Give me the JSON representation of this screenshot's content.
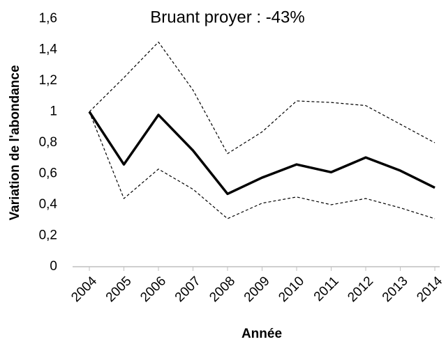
{
  "chart_data": {
    "type": "line",
    "title": "Bruant proyer : -43%",
    "x_label": "Année",
    "y_label": "Variation de l'abondance",
    "categories": [
      "2004",
      "2005",
      "2006",
      "2007",
      "2008",
      "2009",
      "2010",
      "2011",
      "2012",
      "2013",
      "2014"
    ],
    "series": [
      {
        "color": "#000000",
        "dashed": false,
        "values": [
          1.0,
          0.66,
          0.98,
          0.75,
          0.47,
          0.575,
          0.66,
          0.61,
          0.705,
          0.62,
          0.51
        ]
      },
      {
        "color": "#000000",
        "dashed": true,
        "values": [
          1.0,
          1.22,
          1.45,
          1.14,
          0.73,
          0.87,
          1.07,
          1.06,
          1.04,
          0.92,
          0.8
        ]
      },
      {
        "color": "#000000",
        "dashed": true,
        "values": [
          1.0,
          0.44,
          0.63,
          0.5,
          0.31,
          0.41,
          0.45,
          0.4,
          0.44,
          0.38,
          0.31
        ]
      }
    ],
    "ylim": [
      0,
      1.6
    ],
    "yticks": [
      0,
      {
        "value": 0.2,
        "label": "0,2"
      },
      {
        "value": 0.4,
        "label": "0,4"
      },
      {
        "value": 0.6,
        "label": "0,6"
      },
      {
        "value": 0.8,
        "label": "0,8"
      },
      1,
      {
        "value": 1.2,
        "label": "1,2"
      },
      {
        "value": 1.4,
        "label": "1,4"
      },
      {
        "value": 1.6,
        "label": "1,6"
      }
    ],
    "grid": false
  }
}
